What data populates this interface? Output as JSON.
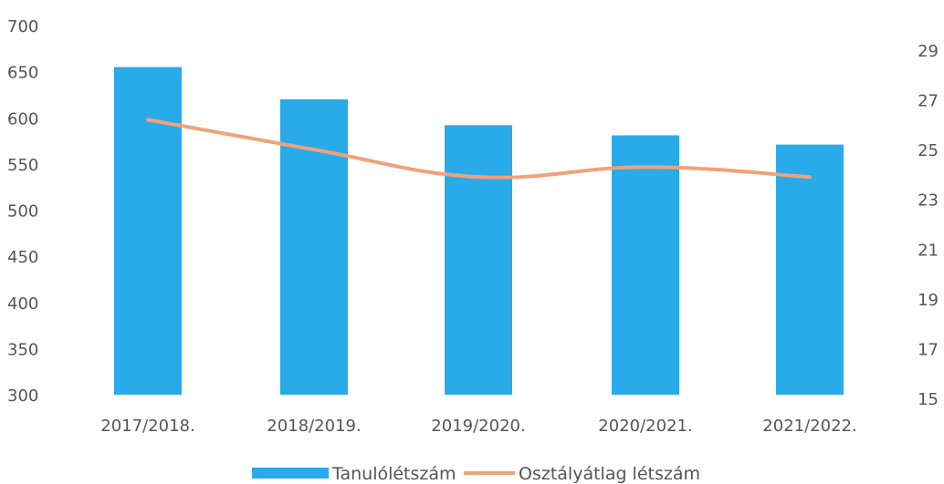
{
  "chart_data": {
    "type": "bar",
    "categories": [
      "2017/2018.",
      "2018/2019.",
      "2019/2020.",
      "2020/2021.",
      "2021/2022."
    ],
    "series": [
      {
        "name": "Tanulólétszám",
        "type": "bar",
        "axis": "left",
        "values": [
          655,
          620,
          592,
          581,
          571
        ]
      },
      {
        "name": "Osztályátlag létszám",
        "type": "line",
        "axis": "right",
        "values": [
          26.2,
          25.0,
          23.9,
          24.3,
          23.9
        ]
      }
    ],
    "y_left": {
      "min": 300,
      "max": 700,
      "ticks": [
        "700",
        "650",
        "600",
        "550",
        "500",
        "450",
        "400",
        "350",
        "300"
      ]
    },
    "y_right": {
      "min": 15,
      "max": 29,
      "ticks": [
        "29",
        "27",
        "25",
        "23",
        "21",
        "19",
        "17",
        "15"
      ]
    },
    "grid": false,
    "legend_position": "bottom",
    "colors": {
      "bar": "#29aae9",
      "line": "#f0a27a",
      "text": "#555555"
    }
  }
}
